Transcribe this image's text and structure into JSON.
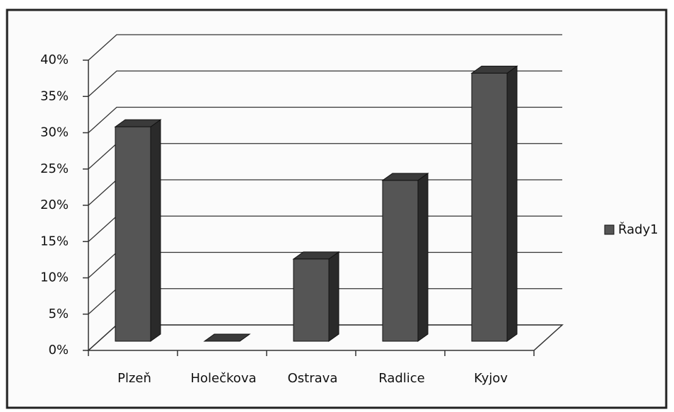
{
  "chart_data": {
    "type": "bar3d",
    "categories": [
      "Plzeň",
      "Holečkova",
      "Ostrava",
      "Radlice",
      "Kyjov"
    ],
    "series": [
      {
        "name": "Řady1",
        "color": "#555555",
        "values": [
          30,
          0,
          11.5,
          22.5,
          37.5
        ]
      }
    ],
    "ylim": [
      0,
      40
    ],
    "yticks": [
      {
        "value": 0,
        "label": "0%"
      },
      {
        "value": 5,
        "label": "5%"
      },
      {
        "value": 10,
        "label": "10%"
      },
      {
        "value": 15,
        "label": "15%"
      },
      {
        "value": 20,
        "label": "20%"
      },
      {
        "value": 25,
        "label": "25%"
      },
      {
        "value": 30,
        "label": "30%"
      },
      {
        "value": 35,
        "label": "35%"
      },
      {
        "value": 40,
        "label": "40%"
      }
    ],
    "grid": true,
    "legend": "right"
  }
}
